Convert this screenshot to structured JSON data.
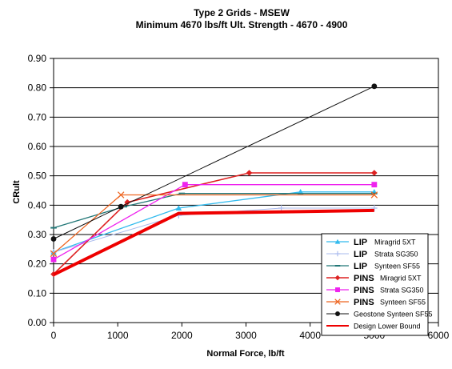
{
  "chart_data": {
    "type": "line",
    "title": "Type 2 Grids - MSEW",
    "subtitle": "Minimum 4670 lbs/ft Ult. Strength - 4670 - 4900",
    "xlabel": "Normal Force, lb/ft",
    "ylabel": "CRult",
    "xlim": [
      0,
      6000
    ],
    "ylim": [
      0,
      0.9
    ],
    "x_ticks": [
      "0",
      "1000",
      "2000",
      "3000",
      "4000",
      "5000",
      "6000"
    ],
    "y_ticks": [
      "0.00",
      "0.10",
      "0.20",
      "0.30",
      "0.40",
      "0.50",
      "0.60",
      "0.70",
      "0.80",
      "0.90"
    ],
    "grid": "horizontal",
    "legend_position": "bottom-right",
    "series": [
      {
        "prefix": "LIP",
        "label": "Miragrid 5XT",
        "color": "#33bbee",
        "marker": "triangle",
        "line_width": 1.3,
        "points": [
          [
            0,
            0.24
          ],
          [
            1950,
            0.39
          ],
          [
            3850,
            0.445
          ],
          [
            5000,
            0.445
          ]
        ]
      },
      {
        "prefix": "LIP",
        "label": "Strata SG350",
        "color": "#aabbee",
        "marker": "plus",
        "line_width": 1,
        "points": [
          [
            0,
            0.24
          ],
          [
            1950,
            0.365
          ],
          [
            3550,
            0.39
          ],
          [
            5000,
            0.39
          ]
        ]
      },
      {
        "prefix": "LIP",
        "label": "Synteen SF55",
        "color": "#227777",
        "marker": "dash",
        "line_width": 1.3,
        "points": [
          [
            0,
            0.323
          ],
          [
            1100,
            0.395
          ],
          [
            2000,
            0.44
          ],
          [
            5000,
            0.44
          ]
        ]
      },
      {
        "prefix": "PINS",
        "label": "Miragrid 5XT",
        "color": "#dd2222",
        "marker": "diamond",
        "line_width": 1.6,
        "points": [
          [
            0,
            0.165
          ],
          [
            1150,
            0.41
          ],
          [
            3050,
            0.51
          ],
          [
            5000,
            0.51
          ]
        ]
      },
      {
        "prefix": "PINS",
        "label": "Strata SG350",
        "color": "#ee22ee",
        "marker": "square",
        "line_width": 1.3,
        "points": [
          [
            0,
            0.215
          ],
          [
            2050,
            0.47
          ],
          [
            5000,
            0.47
          ]
        ]
      },
      {
        "prefix": "PINS",
        "label": "Synteen SF55",
        "color": "#ee6622",
        "marker": "x",
        "line_width": 1.3,
        "points": [
          [
            0,
            0.235
          ],
          [
            1050,
            0.435
          ],
          [
            5000,
            0.435
          ]
        ]
      },
      {
        "prefix": "",
        "label": "Geostone Synteen SF55",
        "color": "#111111",
        "marker": "circle",
        "line_width": 1,
        "points": [
          [
            0,
            0.285
          ],
          [
            1050,
            0.395
          ],
          [
            5000,
            0.805
          ]
        ]
      },
      {
        "prefix": "",
        "label": "Design Lower Bound",
        "color": "#ee0000",
        "marker": "none",
        "line_width": 4,
        "points": [
          [
            0,
            0.163
          ],
          [
            1950,
            0.372
          ],
          [
            5000,
            0.382
          ]
        ]
      }
    ]
  }
}
